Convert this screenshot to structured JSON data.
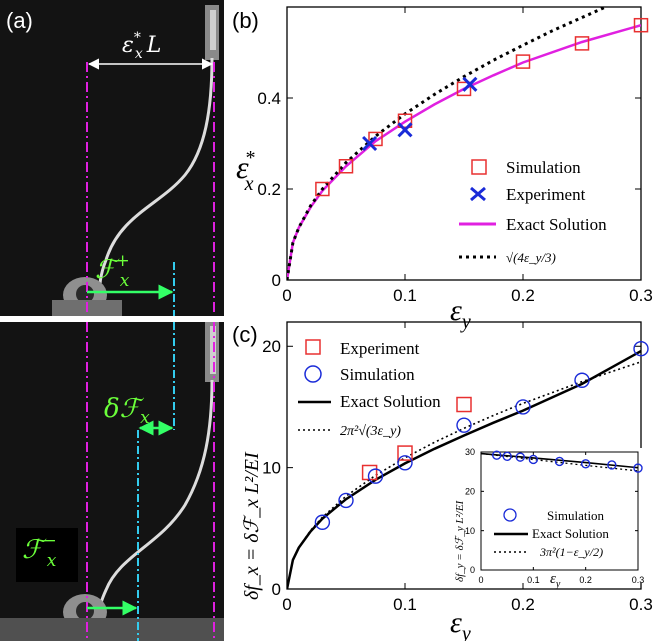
{
  "panel_a": {
    "label": "(a)",
    "top_annotation": "ε",
    "top_sup": "*",
    "top_sub": "x",
    "top_tail": "L",
    "force_plus_main": "ℱ",
    "force_plus_sup": "+",
    "force_plus_sub": "x",
    "delta_force": "δℱ",
    "delta_force_sub": "x",
    "force_minus_main": "ℱ",
    "force_minus_sup": "−",
    "force_minus_sub": "x"
  },
  "colors": {
    "magenta": "#e020e0",
    "cyan": "#33ccee",
    "green": "#33ff66",
    "red": "#e83030",
    "blue": "#1a2bd8",
    "black": "#000000"
  },
  "chart_data": [
    {
      "panel": "(b)",
      "type": "line",
      "xlabel": "ε",
      "xlabel_sub": "y",
      "ylabel": "ε",
      "ylabel_sup": "*",
      "ylabel_sub": "x",
      "xlim": [
        0,
        0.3
      ],
      "ylim": [
        0,
        0.6
      ],
      "xticks": [
        "0",
        "0.1",
        "0.2",
        "0.3"
      ],
      "yticks": [
        "0",
        "0.2",
        "0.4"
      ],
      "series": [
        {
          "name": "Simulation",
          "marker": "square",
          "color": "#e83030",
          "x": [
            0.03,
            0.05,
            0.075,
            0.1,
            0.15,
            0.2,
            0.25,
            0.3
          ],
          "y": [
            0.2,
            0.25,
            0.31,
            0.35,
            0.42,
            0.48,
            0.52,
            0.56
          ]
        },
        {
          "name": "Experiment",
          "marker": "x",
          "color": "#1a2bd8",
          "x": [
            0.07,
            0.1,
            0.155
          ],
          "y": [
            0.3,
            0.33,
            0.43
          ]
        },
        {
          "name": "Exact Solution",
          "style": "solid",
          "color": "#e020e0",
          "x": [
            0,
            0.005,
            0.01,
            0.02,
            0.03,
            0.05,
            0.075,
            0.1,
            0.125,
            0.15,
            0.175,
            0.2,
            0.25,
            0.3
          ],
          "y": [
            0,
            0.082,
            0.115,
            0.16,
            0.196,
            0.25,
            0.305,
            0.348,
            0.386,
            0.42,
            0.45,
            0.478,
            0.523,
            0.56
          ]
        },
        {
          "name": "√(4ε_y/3)",
          "style": "dotted",
          "color": "#000000",
          "x": [
            0,
            0.005,
            0.01,
            0.02,
            0.03,
            0.05,
            0.075,
            0.1,
            0.125,
            0.15,
            0.175,
            0.2,
            0.225,
            0.25,
            0.27
          ],
          "y": [
            0,
            0.082,
            0.115,
            0.163,
            0.2,
            0.258,
            0.316,
            0.365,
            0.408,
            0.447,
            0.483,
            0.516,
            0.548,
            0.577,
            0.6
          ]
        }
      ],
      "legend": {
        "placement": "bottom-right",
        "items": [
          "Simulation",
          "Experiment",
          "Exact Solution"
        ],
        "formula": "√(4ε_y/3)"
      }
    },
    {
      "panel": "(c)",
      "type": "line",
      "xlabel": "ε",
      "xlabel_sub": "y",
      "ylabel": "δf_x = δℱ_x L²/EI",
      "xlim": [
        0,
        0.3
      ],
      "ylim": [
        0,
        22
      ],
      "xticks": [
        "0",
        "0.1",
        "0.2",
        "0.3"
      ],
      "yticks": [
        "0",
        "10",
        "20"
      ],
      "series": [
        {
          "name": "Experiment",
          "marker": "square",
          "color": "#e83030",
          "x": [
            0.07,
            0.1,
            0.15
          ],
          "y": [
            9.6,
            11.2,
            15.2
          ]
        },
        {
          "name": "Simulation",
          "marker": "circle",
          "color": "#1a2bd8",
          "x": [
            0.03,
            0.05,
            0.075,
            0.1,
            0.15,
            0.2,
            0.25,
            0.3
          ],
          "y": [
            5.5,
            7.3,
            9.3,
            10.4,
            13.5,
            15.0,
            17.2,
            19.8
          ]
        },
        {
          "name": "Exact Solution",
          "style": "solid",
          "color": "#000000",
          "x": [
            0,
            0.005,
            0.01,
            0.02,
            0.03,
            0.05,
            0.075,
            0.1,
            0.125,
            0.15,
            0.175,
            0.2,
            0.25,
            0.3
          ],
          "y": [
            0,
            2.4,
            3.4,
            4.75,
            5.8,
            7.4,
            9.0,
            10.35,
            11.55,
            12.65,
            13.7,
            14.7,
            16.9,
            19.6
          ]
        },
        {
          "name": "2π²√(3ε_y)",
          "style": "dotted",
          "color": "#000000",
          "x": [
            0,
            0.005,
            0.01,
            0.02,
            0.03,
            0.05,
            0.075,
            0.1,
            0.125,
            0.15,
            0.175,
            0.2,
            0.25,
            0.3
          ],
          "y": [
            0,
            2.42,
            3.42,
            4.83,
            5.92,
            7.65,
            9.36,
            10.81,
            12.09,
            13.24,
            14.3,
            15.29,
            17.09,
            18.72
          ]
        }
      ],
      "legend": {
        "placement": "top-left",
        "items": [
          "Experiment",
          "Simulation",
          "Exact Solution"
        ],
        "formula": "2π²√(3ε_y)"
      },
      "inset": {
        "type": "line",
        "xlabel": "ε",
        "xlabel_sub": "y",
        "ylabel": "δf_y = δℱ_y L²/EI",
        "xlim": [
          0,
          0.3
        ],
        "ylim": [
          0,
          30
        ],
        "xticks": [
          "0",
          "0.1",
          "0.2",
          "0.3"
        ],
        "yticks": [
          "0",
          "10",
          "20",
          "30"
        ],
        "series": [
          {
            "name": "Simulation",
            "marker": "circle",
            "color": "#1a2bd8",
            "x": [
              0.03,
              0.05,
              0.075,
              0.1,
              0.15,
              0.2,
              0.25,
              0.3
            ],
            "y": [
              29.2,
              28.9,
              28.7,
              28.1,
              27.6,
              27.0,
              26.7,
              25.9
            ]
          },
          {
            "name": "Exact Solution",
            "style": "solid",
            "color": "#000000",
            "x": [
              0,
              0.1,
              0.2,
              0.3
            ],
            "y": [
              29.6,
              28.5,
              27.3,
              26.0
            ]
          },
          {
            "name": "3π²(1−ε_y/2)",
            "style": "dotted",
            "color": "#000000",
            "x": [
              0,
              0.1,
              0.2,
              0.3
            ],
            "y": [
              29.6,
              28.1,
              26.6,
              25.2
            ]
          }
        ],
        "legend": {
          "placement": "bottom-right",
          "items": [
            "Simulation",
            "Exact Solution"
          ],
          "formula": "3π²(1−ε_y/2)"
        }
      }
    }
  ]
}
